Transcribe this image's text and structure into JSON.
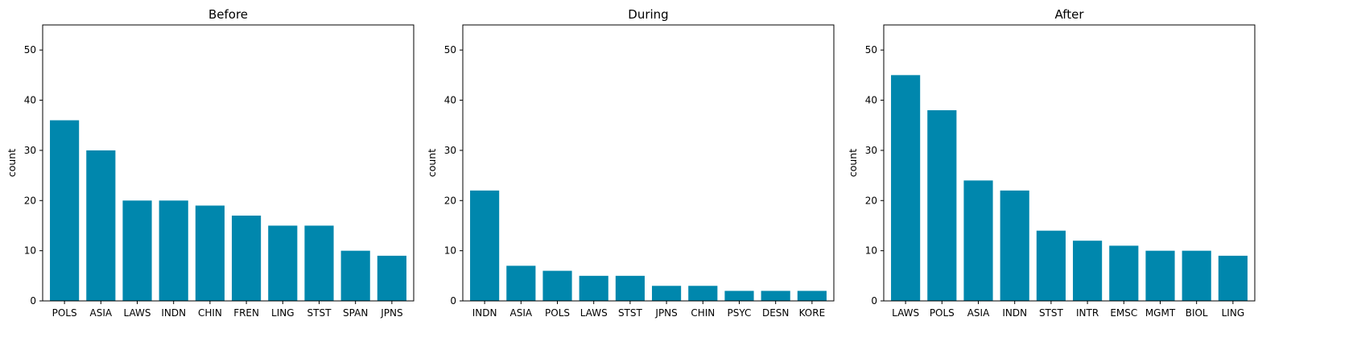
{
  "chart_data": [
    {
      "type": "bar",
      "title": "Before",
      "xlabel": "",
      "ylabel": "count",
      "ylim": [
        0,
        55
      ],
      "yticks": [
        0,
        10,
        20,
        30,
        40,
        50
      ],
      "grid": false,
      "color": "#0087ad",
      "categories": [
        "POLS",
        "ASIA",
        "LAWS",
        "INDN",
        "CHIN",
        "FREN",
        "LING",
        "STST",
        "SPAN",
        "JPNS"
      ],
      "values": [
        36,
        30,
        20,
        20,
        19,
        17,
        15,
        15,
        10,
        9
      ]
    },
    {
      "type": "bar",
      "title": "During",
      "xlabel": "",
      "ylabel": "count",
      "ylim": [
        0,
        55
      ],
      "yticks": [
        0,
        10,
        20,
        30,
        40,
        50
      ],
      "grid": false,
      "color": "#0087ad",
      "categories": [
        "INDN",
        "ASIA",
        "POLS",
        "LAWS",
        "STST",
        "JPNS",
        "CHIN",
        "PSYC",
        "DESN",
        "KORE"
      ],
      "values": [
        22,
        7,
        6,
        5,
        5,
        3,
        3,
        2,
        2,
        2
      ]
    },
    {
      "type": "bar",
      "title": "After",
      "xlabel": "",
      "ylabel": "count",
      "ylim": [
        0,
        55
      ],
      "yticks": [
        0,
        10,
        20,
        30,
        40,
        50
      ],
      "grid": false,
      "color": "#0087ad",
      "categories": [
        "LAWS",
        "POLS",
        "ASIA",
        "INDN",
        "STST",
        "INTR",
        "EMSC",
        "MGMT",
        "BIOL",
        "LING"
      ],
      "values": [
        45,
        38,
        24,
        22,
        14,
        12,
        11,
        10,
        10,
        9
      ]
    }
  ]
}
